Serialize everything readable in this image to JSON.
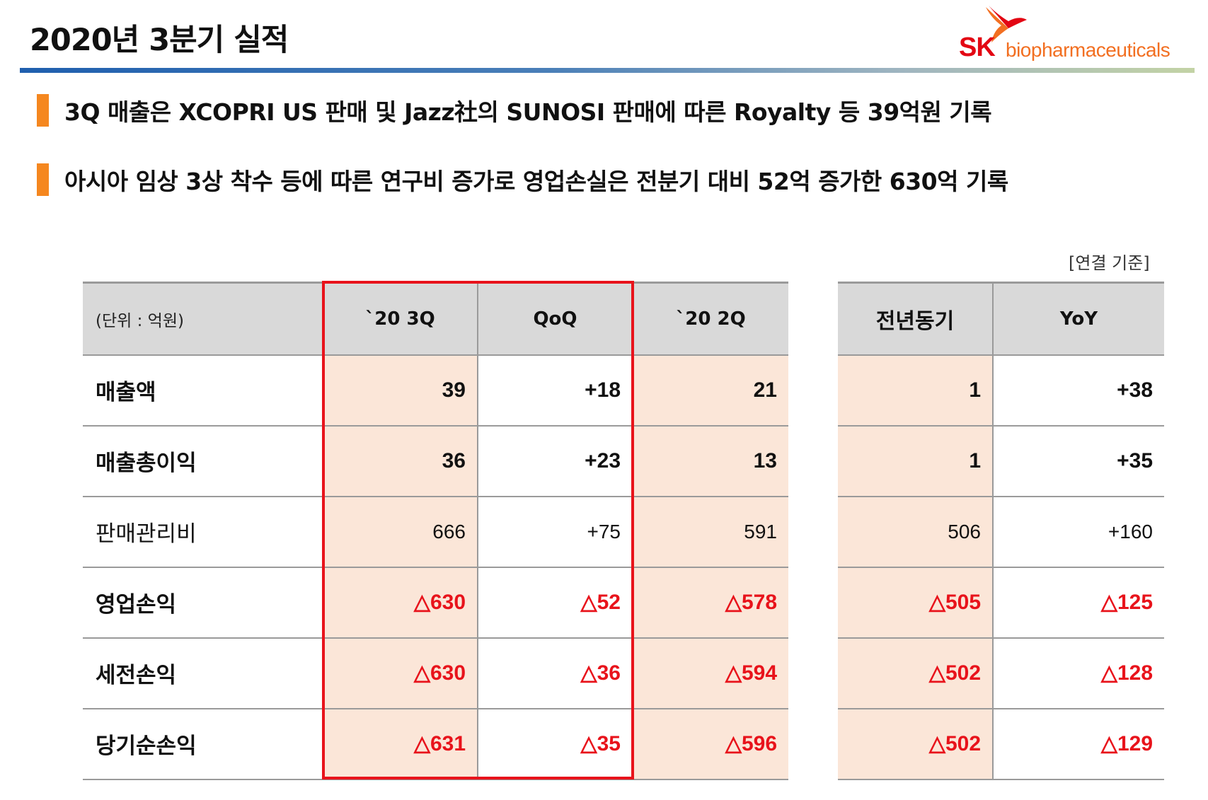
{
  "header": {
    "title": "2020년 3분기 실적",
    "logo": {
      "mark": "SK",
      "wordmark": "biopharmaceuticals",
      "colors": {
        "sk": "#e30613",
        "word": "#f26f21"
      }
    }
  },
  "bullets": [
    "3Q 매출은 XCOPRI US 판매 및 Jazz社의 SUNOSI 판매에 따른 Royalty 등 39억원 기록",
    "아시아 임상 3상 착수 등에 따른 연구비 증가로 영업손실은 전분기 대비 52억 증가한 630억 기록"
  ],
  "basis": "[연결 기준]",
  "table": {
    "unit_label": "(단위 : 억원)",
    "columns": [
      "`20 3Q",
      "QoQ",
      "`20 2Q"
    ],
    "side_columns": [
      "전년동기",
      "YoY"
    ],
    "rows": [
      {
        "label": "매출액",
        "values": [
          "39",
          "+18",
          "21"
        ],
        "side": [
          "1",
          "+38"
        ]
      },
      {
        "label": "매출총이익",
        "values": [
          "36",
          "+23",
          "13"
        ],
        "side": [
          "1",
          "+35"
        ]
      },
      {
        "label": "판매관리비",
        "values": [
          "666",
          "+75",
          "591"
        ],
        "side": [
          "506",
          "+160"
        ]
      },
      {
        "label": "영업손익",
        "values": [
          "△630",
          "△52",
          "△578"
        ],
        "side": [
          "△505",
          "△125"
        ]
      },
      {
        "label": "세전손익",
        "values": [
          "△630",
          "△36",
          "△594"
        ],
        "side": [
          "△502",
          "△128"
        ]
      },
      {
        "label": "당기순손익",
        "values": [
          "△631",
          "△35",
          "△596"
        ],
        "side": [
          "△502",
          "△129"
        ]
      }
    ]
  },
  "colors": {
    "accent_bar": "#f5871f",
    "negative": "#e8131b",
    "highlight_box": "#e8131b",
    "cell_shade": "#fbe6d8",
    "header_bg": "#d9d9d9"
  }
}
